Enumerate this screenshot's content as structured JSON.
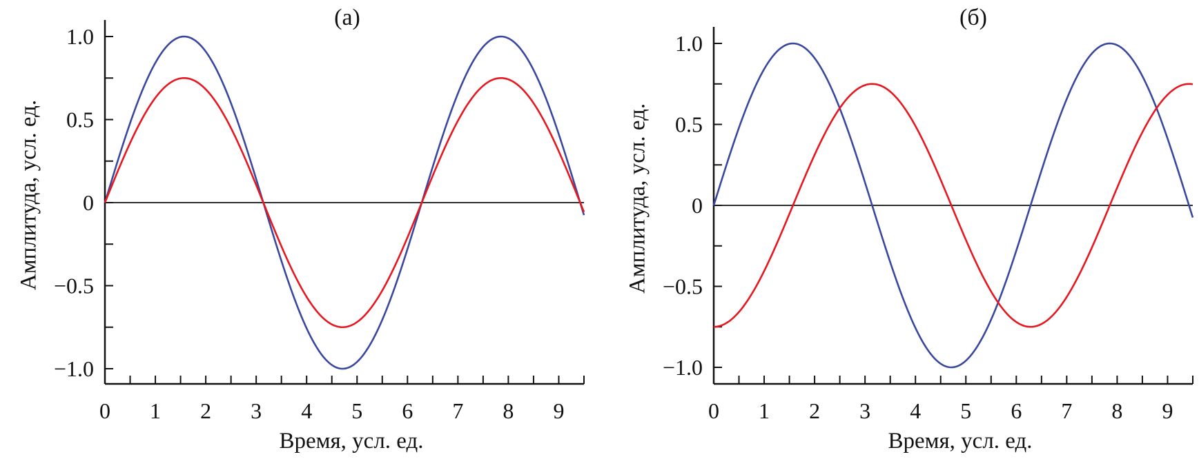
{
  "colors": {
    "blue": "#3a479e",
    "red": "#e8161e",
    "axis": "#111111"
  },
  "chart_data": [
    {
      "type": "line",
      "title": "(а)",
      "xlabel": "Время, усл. ед.",
      "ylabel": "Амплитуда, усл. ед.",
      "xlim": [
        0,
        9.5
      ],
      "ylim": [
        -1.09,
        1.1
      ],
      "xticks": [
        0,
        1,
        2,
        3,
        4,
        5,
        6,
        7,
        8,
        9
      ],
      "xtick_labels": [
        "0",
        "1",
        "2",
        "3",
        "4",
        "5",
        "6",
        "7",
        "8",
        "9"
      ],
      "yticks": [
        -1.0,
        -0.5,
        0,
        0.5,
        1.0
      ],
      "ytick_labels": [
        "−1.0",
        "−0.5",
        "0",
        "0.5",
        "1.0"
      ],
      "zero_line": true,
      "grid": false,
      "series": [
        {
          "name": "blue",
          "color_key": "blue",
          "function": "1.0*sin(t)",
          "amplitude": 1.0,
          "phase": 0
        },
        {
          "name": "red",
          "color_key": "red",
          "function": "0.75*sin(t)",
          "amplitude": 0.75,
          "phase": 0
        }
      ]
    },
    {
      "type": "line",
      "title": "(б)",
      "xlabel": "Время, усл. ед.",
      "ylabel": "Амплитуда, усл. ед.",
      "xlim": [
        0,
        9.5
      ],
      "ylim": [
        -1.09,
        1.1
      ],
      "xticks": [
        0,
        1,
        2,
        3,
        4,
        5,
        6,
        7,
        8,
        9
      ],
      "xtick_labels": [
        "0",
        "1",
        "2",
        "3",
        "4",
        "5",
        "6",
        "7",
        "8",
        "9"
      ],
      "yticks": [
        -1.0,
        -0.5,
        0,
        0.5,
        1.0
      ],
      "ytick_labels": [
        "−1.0",
        "−0.5",
        "0",
        "0.5",
        "1.0"
      ],
      "zero_line": true,
      "grid": false,
      "series": [
        {
          "name": "blue",
          "color_key": "blue",
          "function": "1.0*sin(t)",
          "amplitude": 1.0,
          "phase": 0
        },
        {
          "name": "red",
          "color_key": "red",
          "function": "-0.75*cos(t)",
          "amplitude": 0.75,
          "phase": -1.5708
        }
      ]
    }
  ]
}
